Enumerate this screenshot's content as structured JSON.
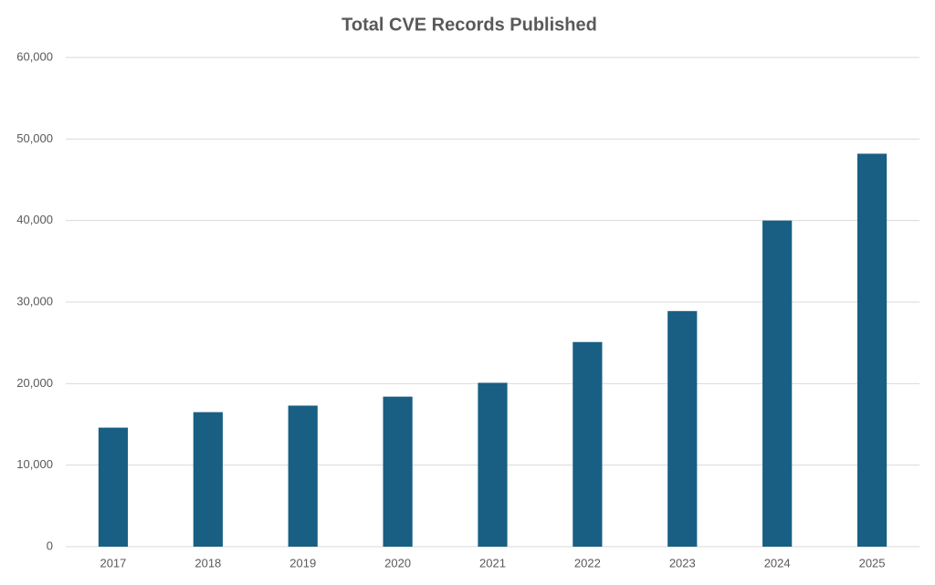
{
  "chart_data": {
    "type": "bar",
    "title": "Total CVE Records Published",
    "categories": [
      "2017",
      "2018",
      "2019",
      "2020",
      "2021",
      "2022",
      "2023",
      "2024",
      "2025"
    ],
    "values": [
      14600,
      16500,
      17300,
      18400,
      20100,
      25100,
      28900,
      40000,
      48200
    ],
    "color": "#185f83",
    "ylim": [
      0,
      60000
    ],
    "yticks": [
      0,
      {
        "value": 10000,
        "label": "10,000"
      },
      {
        "value": 20000,
        "label": "20,000"
      },
      {
        "value": 30000,
        "label": "30,000"
      },
      {
        "value": 40000,
        "label": "40,000"
      },
      {
        "value": 50000,
        "label": "50,000"
      },
      {
        "value": 60000,
        "label": "60,000"
      }
    ],
    "grid": true
  }
}
